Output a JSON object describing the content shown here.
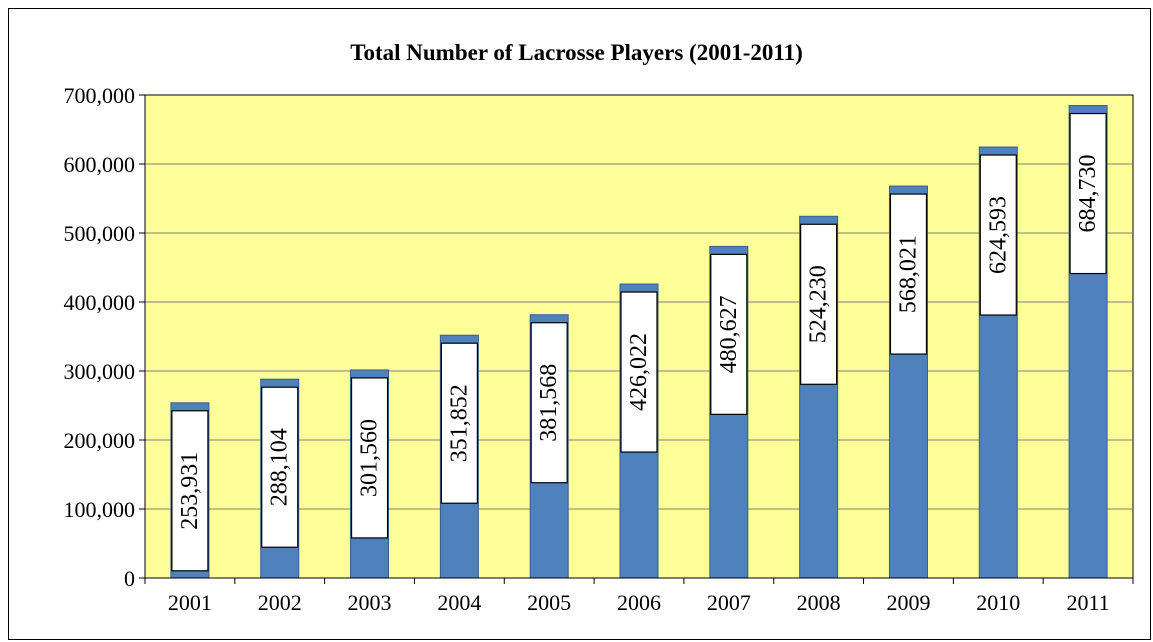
{
  "chart_data": {
    "type": "bar",
    "title": "Total Number of Lacrosse Players (2001-2011)",
    "categories": [
      "2001",
      "2002",
      "2003",
      "2004",
      "2005",
      "2006",
      "2007",
      "2008",
      "2009",
      "2010",
      "2011"
    ],
    "values": [
      253931,
      288104,
      301560,
      351852,
      381568,
      426022,
      480627,
      524230,
      568021,
      624593,
      684730
    ],
    "value_labels": [
      "253,931",
      "288,104",
      "301,560",
      "351,852",
      "381,568",
      "426,022",
      "480,627",
      "524,230",
      "568,021",
      "624,593",
      "684,730"
    ],
    "y_ticks": [
      "0",
      "100,000",
      "200,000",
      "300,000",
      "400,000",
      "500,000",
      "600,000",
      "700,000"
    ],
    "ylim": [
      0,
      700000
    ],
    "xlabel": "",
    "ylabel": "",
    "grid": true,
    "legend": "none",
    "colors": {
      "bar": "#4F81BD",
      "bar_edge": "#385D8A",
      "plot_background": "#FFFF99",
      "label_box": "#FFFFFF"
    }
  }
}
